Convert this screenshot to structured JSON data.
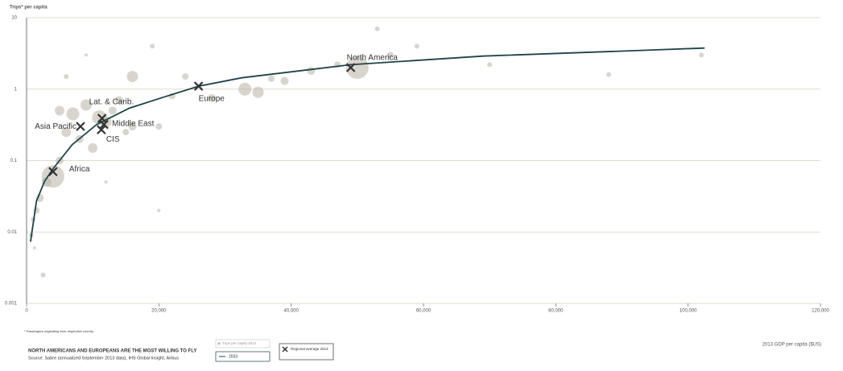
{
  "chart_data": {
    "type": "scatter",
    "y_label": "Trips* per capita",
    "x_label": "2013 GDP per capita ($US)",
    "footnote": "* Passengers originating from respective country",
    "title": "NORTH AMERICANS AND EUROPEANS ARE THE MOST WILLING TO FLY",
    "source": "Source: Sabre (annualized September 2013 data), IHS Global Insight, Airbus",
    "log_y": true,
    "grid": true,
    "xlim": [
      0,
      120000
    ],
    "ylim": [
      0.001,
      10
    ],
    "xticks": [
      0,
      {
        "value": 20000,
        "label": "20,000"
      },
      {
        "value": 40000,
        "label": "40,000"
      },
      {
        "value": 60000,
        "label": "60,000"
      },
      {
        "value": 80000,
        "label": "80,000"
      },
      {
        "value": 100000,
        "label": "100,000"
      },
      {
        "value": 120000,
        "label": "120,000"
      }
    ],
    "yticks": [
      0.001,
      0.01,
      0.1,
      1,
      10
    ],
    "series": [
      {
        "name": "Trips per capita 2013",
        "kind": "bubble",
        "color": "#b9b2a5",
        "x": [
          4000,
          3000,
          2000,
          1500,
          1000,
          700,
          1200,
          2500,
          5000,
          6000,
          7000,
          8000,
          9000,
          10000,
          11000,
          12000,
          13000,
          14000,
          15000,
          16000,
          20000,
          22000,
          24000,
          28000,
          33000,
          35000,
          37000,
          39000,
          43000,
          47000,
          50000,
          53000,
          55000,
          59000,
          70000,
          88000,
          102000,
          6000,
          9000,
          12000,
          20000,
          5000,
          16000,
          19000
        ],
        "values": [
          0.06,
          0.05,
          0.03,
          0.02,
          0.015,
          0.009,
          0.006,
          0.0025,
          0.1,
          0.25,
          0.45,
          0.2,
          0.6,
          0.15,
          0.4,
          0.35,
          0.5,
          0.7,
          0.25,
          0.3,
          0.3,
          0.8,
          1.5,
          0.75,
          1.0,
          0.9,
          1.4,
          1.3,
          1.8,
          2.2,
          2.0,
          7,
          3,
          4,
          2.2,
          1.6,
          3,
          1.5,
          3,
          0.05,
          0.02,
          0.5,
          1.5,
          4
        ],
        "sizes": [
          14,
          6,
          5,
          4,
          3,
          3,
          2,
          3,
          5,
          6,
          8,
          5,
          7,
          6,
          9,
          7,
          5,
          5,
          4,
          5,
          4,
          4,
          4,
          5,
          8,
          7,
          4,
          5,
          5,
          4,
          14,
          3,
          4,
          3,
          3,
          3,
          3,
          3,
          2,
          2,
          2,
          6,
          7,
          3
        ]
      },
      {
        "name": "2033",
        "kind": "line",
        "color": "#1d4249",
        "x": [
          600,
          1500,
          2700,
          4000,
          6900,
          10600,
          15500,
          20300,
          26000,
          32500,
          49000,
          69000,
          93300,
          102500
        ],
        "values": [
          0.0073,
          0.027,
          0.051,
          0.077,
          0.167,
          0.32,
          0.54,
          0.75,
          1.1,
          1.44,
          2.2,
          2.9,
          3.5,
          3.76
        ]
      },
      {
        "name": "Regional average 2013",
        "kind": "cross",
        "color": "#333333",
        "x": [
          49000,
          26000,
          11400,
          8150,
          11700,
          11300,
          4000
        ],
        "values": [
          2.0,
          1.1,
          0.39,
          0.3,
          0.32,
          0.27,
          0.07
        ],
        "labels": [
          "North America",
          "Europe",
          "Lat. & Carib.",
          "Asia Pacific",
          "Middle East",
          "CIS",
          "Africa"
        ]
      }
    ]
  }
}
